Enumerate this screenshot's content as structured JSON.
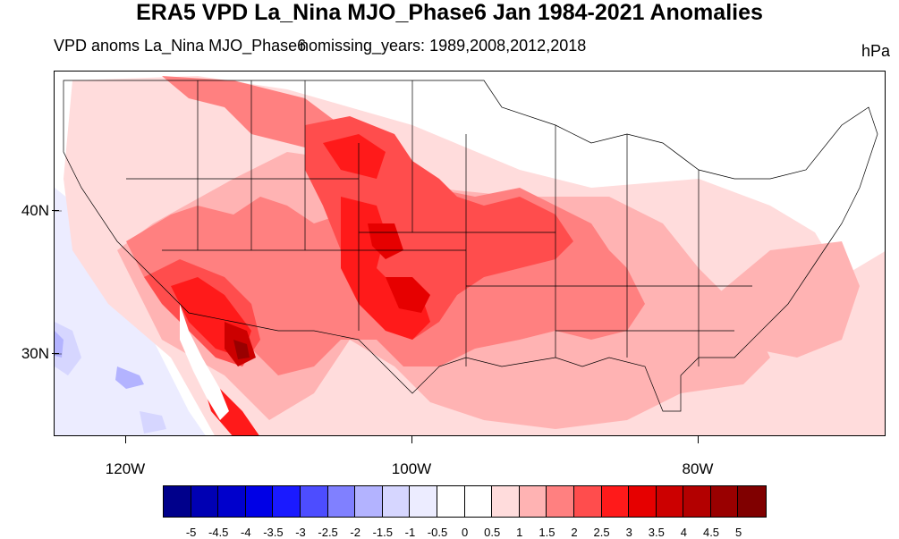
{
  "header": {
    "title": "ERA5 VPD La_Nina MJO_Phase6 Jan 1984-2021 Anomalies",
    "subtitle_left": "VPD anoms La_Nina MJO_Phase6",
    "subtitle_center": "nomissing_years: 1989,2008,2012,2018",
    "units": "hPa"
  },
  "axes": {
    "lat_labels": [
      "40N",
      "30N"
    ],
    "lon_labels": [
      "120W",
      "100W",
      "80W"
    ]
  },
  "colorbar": {
    "labels": [
      "-5",
      "-4.5",
      "-4",
      "-3.5",
      "-3",
      "-2.5",
      "-2",
      "-1.5",
      "-1",
      "-0.5",
      "0",
      "0.5",
      "1",
      "1.5",
      "2",
      "2.5",
      "3",
      "3.5",
      "4",
      "4.5",
      "5"
    ],
    "colors": [
      "#00008b",
      "#0000b3",
      "#0000cc",
      "#0000e6",
      "#1a1aff",
      "#4d4dff",
      "#8080ff",
      "#b3b3ff",
      "#d6d6ff",
      "#ececff",
      "#ffffff",
      "#ffffff",
      "#ffdcdc",
      "#ffb3b3",
      "#ff8080",
      "#ff4d4d",
      "#ff1a1a",
      "#e60000",
      "#cc0000",
      "#b30000",
      "#990000",
      "#800000"
    ]
  },
  "map": {
    "projection": "cylindrical equidistant",
    "region": "contiguous United States",
    "features": [
      "state boundaries",
      "coastlines",
      "filled contours"
    ]
  }
}
